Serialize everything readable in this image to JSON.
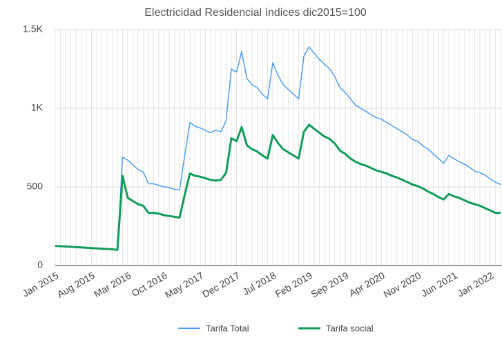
{
  "chart_data": {
    "type": "line",
    "title": "Electricidad Residencial  índices dic2015=100",
    "categories": [
      "Jan 2015",
      null,
      null,
      null,
      null,
      null,
      null,
      "Aug 2015",
      null,
      null,
      null,
      null,
      null,
      null,
      "Mar 2016",
      null,
      null,
      null,
      null,
      null,
      null,
      "Oct 2016",
      null,
      null,
      null,
      null,
      null,
      null,
      "May 2017",
      null,
      null,
      null,
      null,
      null,
      null,
      "Dec 2017",
      null,
      null,
      null,
      null,
      null,
      null,
      "Jul 2018",
      null,
      null,
      null,
      null,
      null,
      null,
      "Feb 2019",
      null,
      null,
      null,
      null,
      null,
      null,
      "Sep 2019",
      null,
      null,
      null,
      null,
      null,
      null,
      "Apr 2020",
      null,
      null,
      null,
      null,
      null,
      null,
      "Nov 2020",
      null,
      null,
      null,
      null,
      null,
      null,
      "Jun 2021",
      null,
      null,
      null,
      null,
      null,
      null,
      "Jan 2022",
      null,
      null
    ],
    "series": [
      {
        "name": "Tarifa Total",
        "color": "#4a9ff5",
        "values": [
          125,
          123,
          121,
          119,
          117,
          115,
          113,
          111,
          109,
          107,
          105,
          103,
          100,
          690,
          670,
          640,
          610,
          595,
          520,
          520,
          510,
          500,
          495,
          485,
          480,
          700,
          910,
          885,
          875,
          860,
          845,
          860,
          850,
          920,
          1250,
          1230,
          1360,
          1190,
          1150,
          1130,
          1090,
          1060,
          1290,
          1210,
          1150,
          1120,
          1090,
          1060,
          1330,
          1390,
          1350,
          1310,
          1280,
          1250,
          1200,
          1130,
          1100,
          1060,
          1020,
          1000,
          980,
          960,
          940,
          930,
          910,
          890,
          870,
          850,
          830,
          800,
          790,
          760,
          740,
          710,
          680,
          650,
          700,
          680,
          660,
          645,
          625,
          600,
          590,
          575,
          550,
          530,
          515
        ]
      },
      {
        "name": "Tarifa social",
        "color": "#0f9d58",
        "values": [
          125,
          123,
          121,
          119,
          117,
          115,
          113,
          111,
          109,
          107,
          105,
          103,
          100,
          570,
          430,
          410,
          390,
          380,
          335,
          335,
          330,
          320,
          315,
          310,
          305,
          450,
          585,
          570,
          565,
          555,
          545,
          540,
          545,
          590,
          810,
          790,
          880,
          765,
          740,
          725,
          700,
          680,
          830,
          780,
          740,
          720,
          700,
          680,
          850,
          895,
          870,
          845,
          820,
          805,
          775,
          730,
          710,
          680,
          660,
          645,
          635,
          620,
          605,
          595,
          585,
          570,
          560,
          545,
          530,
          515,
          505,
          490,
          470,
          455,
          435,
          420,
          455,
          440,
          430,
          415,
          400,
          390,
          380,
          365,
          350,
          335,
          335
        ]
      }
    ],
    "ylim": [
      0,
      1500
    ],
    "yticks": [
      0,
      500,
      {
        "value": 1000,
        "label": "1K"
      },
      {
        "value": 1500,
        "label": "1.5K"
      }
    ],
    "grid": true,
    "legend": "bottom"
  }
}
